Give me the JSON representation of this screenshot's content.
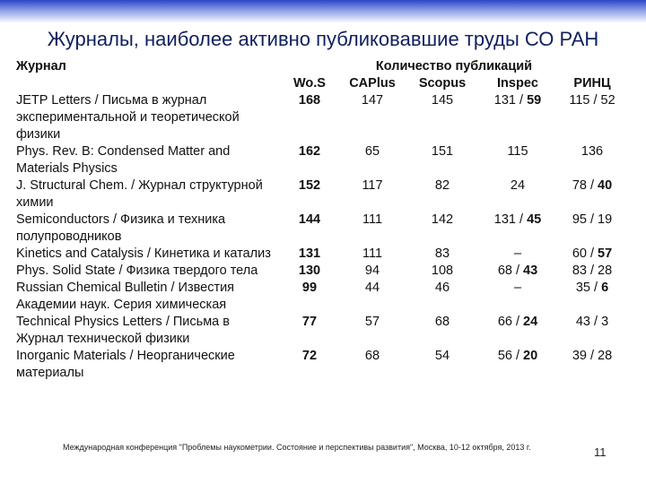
{
  "header": {
    "title": "Журналы, наиболее активно публиковавшие труды СО РАН"
  },
  "table": {
    "journal_header": "Журнал",
    "group_header": "Количество публикаций",
    "columns": [
      {
        "label": "Wo.S",
        "bold": true
      },
      {
        "label": "CAPlus"
      },
      {
        "label": "Scopus"
      },
      {
        "label": "Inspec"
      },
      {
        "label": "РИНЦ"
      }
    ],
    "rows": [
      {
        "journal": "JETP Letters / Письма в журнал экспериментальной и теоретической физики",
        "cells": [
          "168",
          "147",
          "145",
          {
            "runs": [
              {
                "text": "131 / "
              },
              {
                "text": "59",
                "bold": true
              }
            ]
          },
          "115 / 52"
        ]
      },
      {
        "journal": "Phys. Rev. B: Condensed Matter and Materials Physics",
        "cells": [
          "162",
          "65",
          "151",
          "115",
          "136"
        ]
      },
      {
        "journal": "J. Structural Chem. / Журнал структурной химии",
        "cells": [
          "152",
          "117",
          "82",
          "24",
          {
            "runs": [
              {
                "text": "78 / "
              },
              {
                "text": "40",
                "bold": true
              }
            ]
          }
        ]
      },
      {
        "journal": "Semiconductors / Физика и техника полупроводников",
        "cells": [
          "144",
          "111",
          "142",
          {
            "runs": [
              {
                "text": "131 / "
              },
              {
                "text": "45",
                "bold": true
              }
            ]
          },
          "95 / 19"
        ]
      },
      {
        "journal": "Kinetics and Catalysis / Кинетика и катализ",
        "cells": [
          "131",
          "111",
          "83",
          "–",
          {
            "runs": [
              {
                "text": "60 / "
              },
              {
                "text": "57",
                "bold": true
              }
            ]
          }
        ]
      },
      {
        "journal": "Phys. Solid State / Физика твердого тела",
        "cells": [
          "130",
          "94",
          "108",
          {
            "runs": [
              {
                "text": "68 / "
              },
              {
                "text": "43",
                "bold": true
              }
            ]
          },
          "83 / 28"
        ]
      },
      {
        "journal": "Russian Chemical Bulletin / Известия Академии наук. Серия химическая",
        "cells": [
          "99",
          "44",
          "46",
          "–",
          {
            "runs": [
              {
                "text": "35 / "
              },
              {
                "text": "6",
                "bold": true
              }
            ]
          }
        ]
      },
      {
        "journal": "Technical Physics Letters / Письма в Журнал технической физики",
        "cells": [
          "77",
          "57",
          "68",
          {
            "runs": [
              {
                "text": "66 / "
              },
              {
                "text": "24",
                "bold": true
              }
            ]
          },
          "43 / 3"
        ]
      },
      {
        "journal": "Inorganic Materials / Неорганические материалы",
        "cells": [
          "72",
          "68",
          "54",
          {
            "runs": [
              {
                "text": "56 / "
              },
              {
                "text": "20",
                "bold": true
              }
            ]
          },
          "39 / 28"
        ]
      }
    ]
  },
  "footer": {
    "text": "Международная конференция \"Проблемы наукометрии. Состояние и перспективы развития\", Москва, 10-12 октября, 2013 г.",
    "page": "11"
  }
}
